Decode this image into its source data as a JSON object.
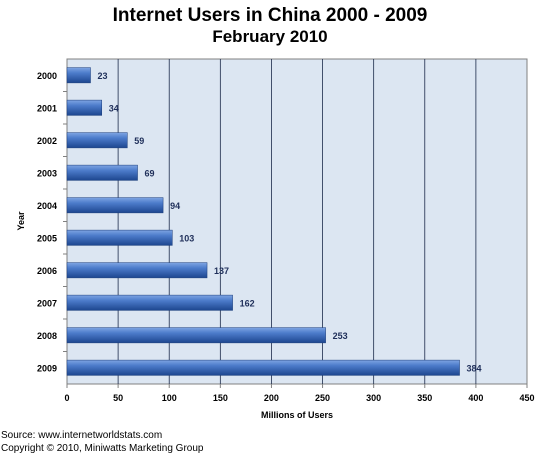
{
  "chart_data": {
    "type": "bar",
    "orientation": "horizontal",
    "title": "Internet Users in China 2000 - 2009",
    "subtitle": "February 2010",
    "xlabel": "Millions of Users",
    "ylabel": "Year",
    "categories": [
      "2000",
      "2001",
      "2002",
      "2003",
      "2004",
      "2005",
      "2006",
      "2007",
      "2008",
      "2009"
    ],
    "values": [
      23,
      34,
      59,
      69,
      94,
      103,
      137,
      162,
      253,
      384
    ],
    "data_labels": [
      "23",
      "34",
      "59",
      "69",
      "94",
      "103",
      "137",
      "162",
      "253",
      "384"
    ],
    "xlim": [
      0,
      450
    ],
    "x_ticks": [
      "0",
      "50",
      "100",
      "150",
      "200",
      "250",
      "300",
      "350",
      "400",
      "450"
    ],
    "grid": true,
    "legend": "none",
    "colors": {
      "bar": "#2e5fb0",
      "bar_highlight": "#5b8bd8",
      "plot_background": "#dce6f2",
      "gridline": "#1c2a4a"
    }
  },
  "footer": {
    "source": "Source: www.internetworldstats.com",
    "copyright": "Copyright © 2010, Miniwatts Marketing Group"
  }
}
